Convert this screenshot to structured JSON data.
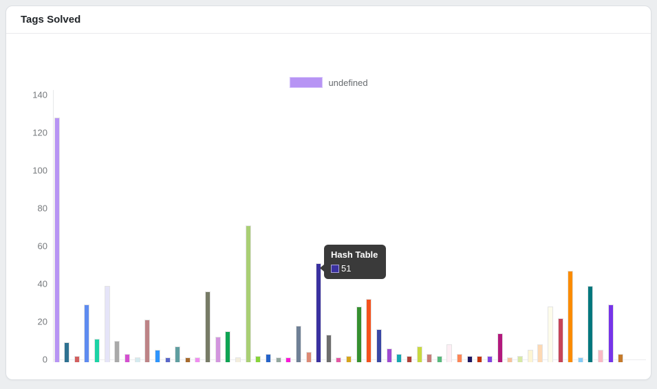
{
  "card": {
    "title": "Tags Solved"
  },
  "chart_data": {
    "type": "bar",
    "title": "Tags Solved",
    "xlabel": "",
    "ylabel": "",
    "ylim": [
      0,
      140
    ],
    "yticks": [
      0,
      20,
      40,
      60,
      80,
      100,
      120,
      140
    ],
    "grid": false,
    "legend_position": "top",
    "legend": [
      {
        "label": "undefined",
        "color": "#b794f4"
      }
    ],
    "series": [
      {
        "name": "undefined",
        "values": [
          128,
          9,
          2,
          29,
          11,
          39,
          10,
          3,
          1,
          21,
          5,
          1,
          7,
          1,
          1,
          36,
          12,
          15,
          1,
          71,
          2,
          3,
          1,
          1,
          18,
          4,
          51,
          13,
          1,
          2,
          28,
          32,
          16,
          6,
          3,
          2,
          7,
          3,
          2,
          8,
          3,
          2,
          2,
          2,
          14,
          1,
          2,
          5,
          8,
          28,
          22,
          47,
          1,
          39,
          5,
          29,
          3
        ],
        "colors": [
          "#b794f4",
          "#2e7191",
          "#d25f5f",
          "#5e8bf0",
          "#1bd3a5",
          "#e5e4f8",
          "#a9a9a9",
          "#d44fd0",
          "#d4ebef",
          "#bd8386",
          "#2e95fd",
          "#5967c9",
          "#5f9ea0",
          "#a76a2d",
          "#f08df0",
          "#777b66",
          "#d295de",
          "#0ea453",
          "#f3eedd",
          "#a9cf74",
          "#87d43a",
          "#2563c9",
          "#93a79e",
          "#f919d7",
          "#6f8096",
          "#dd8a75",
          "#3a31a0",
          "#6d6d6d",
          "#e457a3",
          "#d6a51b",
          "#35902f",
          "#f4521d",
          "#3947a5",
          "#a04ad2",
          "#16a8b2",
          "#b04138",
          "#c8d93f",
          "#c77d79",
          "#57b97c",
          "#fdeef4",
          "#fd8656",
          "#1d1763",
          "#c5360f",
          "#8045e2",
          "#b2187d",
          "#f6c29b",
          "#d6e9a5",
          "#fdf5d3",
          "#fdd9b4",
          "#fdfceb",
          "#c64458",
          "#fb8b00",
          "#85cbf6",
          "#00777d",
          "#f9b9c5",
          "#7634e9",
          "#c57a2b"
        ]
      }
    ],
    "tooltip": {
      "title": "Hash Table",
      "value": "51",
      "swatch_color": "#3a31a0",
      "bar_index": 26
    }
  }
}
